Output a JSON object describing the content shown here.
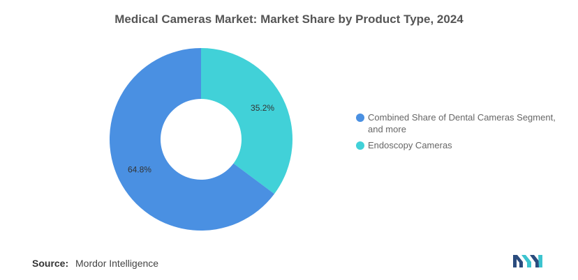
{
  "chart_data": {
    "type": "pie",
    "title": "Medical Cameras Market: Market Share by Product Type, 2024",
    "donut": true,
    "slices": [
      {
        "label": "Endoscopy Cameras",
        "value": 35.2,
        "value_label": "35.2%",
        "color": "#41d1d8"
      },
      {
        "label": "Combined Share of Dental Cameras Segment, and more",
        "value": 64.8,
        "value_label": "64.8%",
        "color": "#4a90e2"
      }
    ],
    "legend_order": [
      1,
      0
    ],
    "legend_position": "right"
  },
  "footer": {
    "source_key": "Source:",
    "source_value": "Mordor Intelligence"
  },
  "logo": {
    "icon": "mordor-intelligence-logo",
    "colors": [
      "#2b4c7e",
      "#3cc4cf"
    ]
  }
}
